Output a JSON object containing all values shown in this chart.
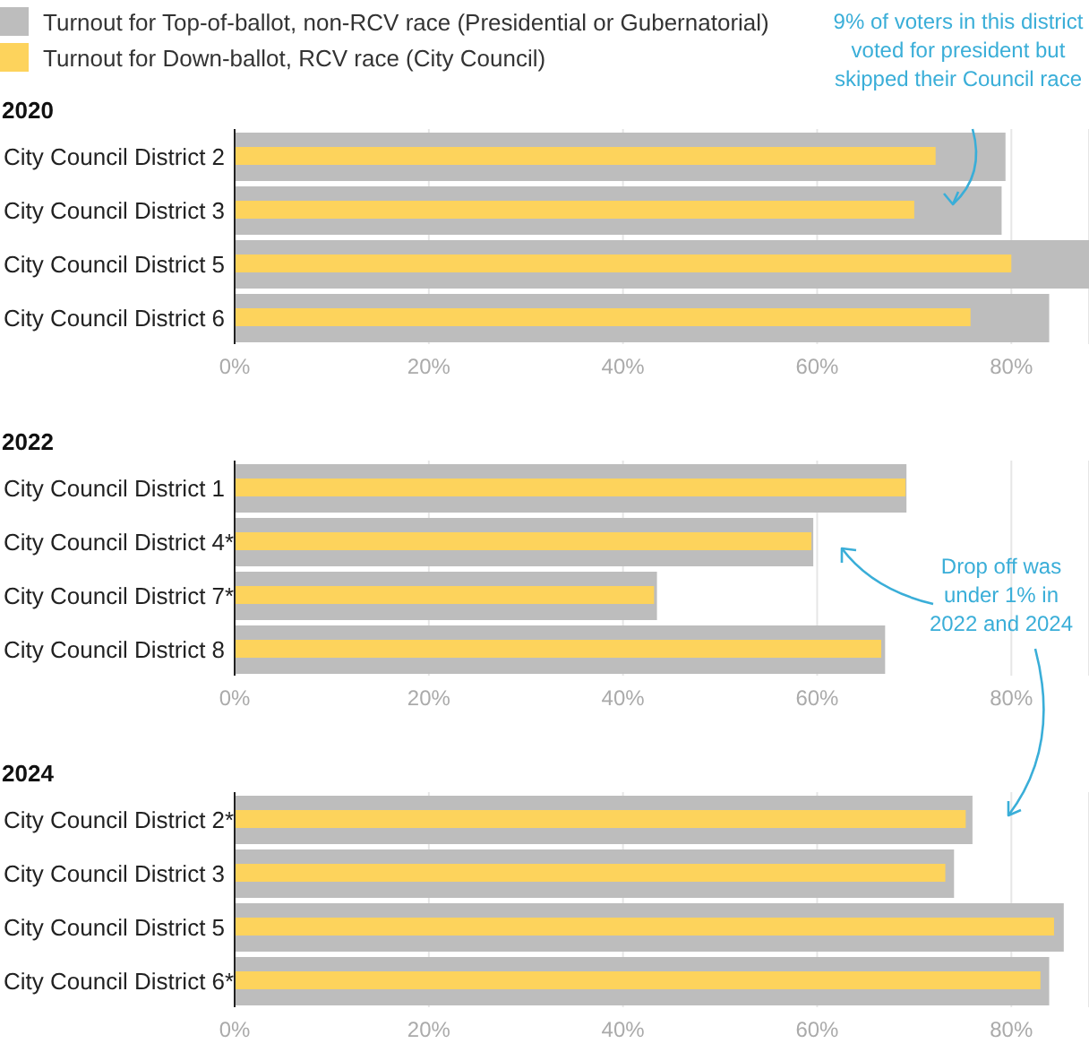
{
  "chart_data": [
    {
      "type": "bar",
      "orientation": "horizontal",
      "title": "2020",
      "legend": "top",
      "grid": "x",
      "categories": [
        "City Council District 2",
        "City Council District 3",
        "City Council District 5",
        "City Council District 6"
      ],
      "series": [
        {
          "name": "Turnout for Top-of-ballot, non-RCV race (Presidential or Gubernatorial)",
          "color": "#bdbdbd",
          "values": [
            79.4,
            79.0,
            88,
            83.9
          ]
        },
        {
          "name": "Turnout for Down-ballot, RCV race (City Council)",
          "color": "#fdd35c",
          "values": [
            72.2,
            70.0,
            80.0,
            75.8
          ]
        }
      ],
      "xlim": [
        0,
        88
      ],
      "xticks": [
        {
          "value": 0,
          "label": "0%"
        },
        {
          "value": 20,
          "label": "20%"
        },
        {
          "value": 40,
          "label": "40%"
        },
        {
          "value": 60,
          "label": "60%"
        },
        {
          "value": 80,
          "label": "80%"
        }
      ],
      "annotations": [
        "9% of voters in this district voted for president but skipped their Council race"
      ]
    },
    {
      "type": "bar",
      "orientation": "horizontal",
      "title": "2022",
      "grid": "x",
      "categories": [
        "City Council District 1",
        "City Council District 4*",
        "City Council District 7*",
        "City Council District 8"
      ],
      "series": [
        {
          "color": "#bdbdbd",
          "values": [
            69.2,
            59.6,
            43.5,
            67.0
          ]
        },
        {
          "color": "#fdd35c",
          "values": [
            69.1,
            59.4,
            43.2,
            66.6
          ]
        }
      ],
      "xlim": [
        0,
        88
      ],
      "xticks": [
        {
          "value": 0,
          "label": "0%"
        },
        {
          "value": 20,
          "label": "20%"
        },
        {
          "value": 40,
          "label": "40%"
        },
        {
          "value": 60,
          "label": "60%"
        },
        {
          "value": 80,
          "label": "80%"
        }
      ],
      "annotations": [
        "Drop off was under 1% in 2022 and 2024"
      ]
    },
    {
      "type": "bar",
      "orientation": "horizontal",
      "title": "2024",
      "grid": "x",
      "categories": [
        "City Council District 2*",
        "City Council District 3",
        "City Council District 5",
        "City Council District 6*"
      ],
      "series": [
        {
          "color": "#bdbdbd",
          "values": [
            76.0,
            74.1,
            85.4,
            83.9
          ]
        },
        {
          "color": "#fdd35c",
          "values": [
            75.3,
            73.2,
            84.4,
            83.0
          ]
        }
      ],
      "xlim": [
        0,
        88
      ],
      "xticks": [
        {
          "value": 0,
          "label": "0%"
        },
        {
          "value": 20,
          "label": "20%"
        },
        {
          "value": 40,
          "label": "40%"
        },
        {
          "value": 60,
          "label": "60%"
        },
        {
          "value": 80,
          "label": "80%"
        }
      ]
    }
  ]
}
